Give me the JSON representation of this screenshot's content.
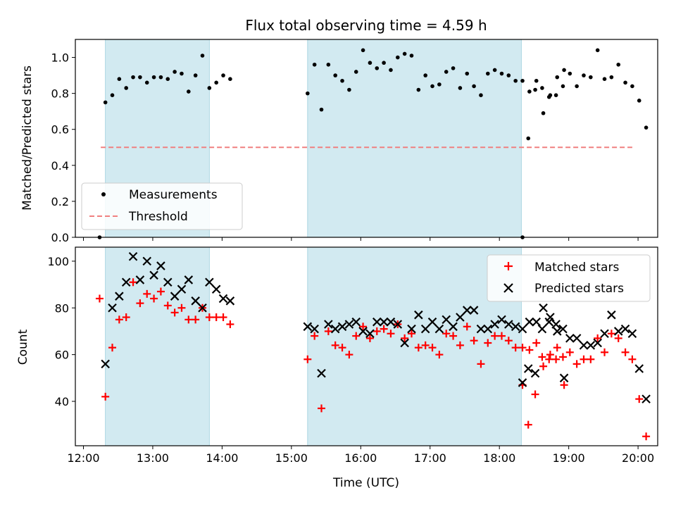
{
  "title": "Flux total observing time = 4.59 h",
  "colors": {
    "shade": "#add8e6",
    "measurement": "#000000",
    "threshold": "#f08080",
    "matched": "#ff0000",
    "predicted": "#000000"
  },
  "chart_data": [
    {
      "type": "scatter",
      "panel": "top",
      "ylabel": "Matched/Predicted stars",
      "ylim": [
        0,
        1.1
      ],
      "yticks": [
        "0.0",
        "0.2",
        "0.4",
        "0.6",
        "0.8",
        "1.0"
      ],
      "xlim": [
        "11:53",
        "20:17"
      ],
      "shaded_intervals": [
        [
          "12:19",
          "13:49"
        ],
        [
          "15:14",
          "18:19"
        ]
      ],
      "legend": {
        "placement": "lower left",
        "entries": [
          "Measurements",
          "Threshold"
        ]
      },
      "threshold": {
        "name": "Threshold",
        "value": 0.5,
        "x_range": [
          "12:15",
          "19:55"
        ]
      },
      "series": [
        {
          "name": "Measurements",
          "marker": "dot",
          "points": [
            [
              "12:14",
              0.0
            ],
            [
              "12:19",
              0.75
            ],
            [
              "12:25",
              0.79
            ],
            [
              "12:31",
              0.88
            ],
            [
              "12:37",
              0.83
            ],
            [
              "12:43",
              0.89
            ],
            [
              "12:49",
              0.89
            ],
            [
              "12:55",
              0.86
            ],
            [
              "13:01",
              0.89
            ],
            [
              "13:07",
              0.89
            ],
            [
              "13:13",
              0.88
            ],
            [
              "13:19",
              0.92
            ],
            [
              "13:25",
              0.91
            ],
            [
              "13:31",
              0.81
            ],
            [
              "13:37",
              0.9
            ],
            [
              "13:43",
              1.01
            ],
            [
              "13:49",
              0.83
            ],
            [
              "13:55",
              0.86
            ],
            [
              "14:01",
              0.9
            ],
            [
              "14:07",
              0.88
            ],
            [
              "15:14",
              0.8
            ],
            [
              "15:20",
              0.96
            ],
            [
              "15:26",
              0.71
            ],
            [
              "15:32",
              0.96
            ],
            [
              "15:38",
              0.9
            ],
            [
              "15:44",
              0.87
            ],
            [
              "15:50",
              0.82
            ],
            [
              "15:56",
              0.92
            ],
            [
              "16:02",
              1.04
            ],
            [
              "16:08",
              0.97
            ],
            [
              "16:14",
              0.94
            ],
            [
              "16:20",
              0.97
            ],
            [
              "16:26",
              0.93
            ],
            [
              "16:32",
              1.0
            ],
            [
              "16:38",
              1.02
            ],
            [
              "16:44",
              1.01
            ],
            [
              "16:50",
              0.82
            ],
            [
              "16:56",
              0.9
            ],
            [
              "17:02",
              0.84
            ],
            [
              "17:08",
              0.85
            ],
            [
              "17:14",
              0.92
            ],
            [
              "17:20",
              0.94
            ],
            [
              "17:26",
              0.83
            ],
            [
              "17:32",
              0.91
            ],
            [
              "17:38",
              0.84
            ],
            [
              "17:44",
              0.79
            ],
            [
              "17:50",
              0.91
            ],
            [
              "17:56",
              0.93
            ],
            [
              "18:02",
              0.91
            ],
            [
              "18:08",
              0.9
            ],
            [
              "18:14",
              0.87
            ],
            [
              "18:20",
              0.87
            ],
            [
              "18:26",
              0.81
            ],
            [
              "18:32",
              0.87
            ],
            [
              "18:38",
              0.69
            ],
            [
              "18:44",
              0.79
            ],
            [
              "18:50",
              0.89
            ],
            [
              "18:56",
              0.93
            ],
            [
              "18:20",
              0.0
            ],
            [
              "18:25",
              0.55
            ],
            [
              "18:31",
              0.82
            ],
            [
              "18:37",
              0.83
            ],
            [
              "18:43",
              0.78
            ],
            [
              "18:49",
              0.79
            ],
            [
              "18:55",
              0.84
            ],
            [
              "19:01",
              0.91
            ],
            [
              "19:07",
              0.84
            ],
            [
              "19:13",
              0.9
            ],
            [
              "19:19",
              0.89
            ],
            [
              "19:25",
              1.04
            ],
            [
              "19:31",
              0.88
            ],
            [
              "19:37",
              0.89
            ],
            [
              "19:43",
              0.96
            ],
            [
              "19:49",
              0.86
            ],
            [
              "19:55",
              0.84
            ],
            [
              "20:01",
              0.76
            ],
            [
              "20:07",
              0.61
            ]
          ]
        }
      ]
    },
    {
      "type": "scatter",
      "panel": "bottom",
      "xlabel": "Time (UTC)",
      "ylabel": "Count",
      "ylim": [
        21,
        106
      ],
      "yticks": [
        "40",
        "60",
        "80",
        "100"
      ],
      "xlim": [
        "11:53",
        "20:17"
      ],
      "xticks": [
        "12:00",
        "13:00",
        "14:00",
        "15:00",
        "16:00",
        "17:00",
        "18:00",
        "19:00",
        "20:00"
      ],
      "shaded_intervals": [
        [
          "12:19",
          "13:49"
        ],
        [
          "15:14",
          "18:19"
        ]
      ],
      "legend": {
        "placement": "top-right",
        "entries": [
          "Matched stars",
          "Predicted stars"
        ]
      },
      "series": [
        {
          "name": "Matched stars",
          "marker": "plus",
          "points": [
            [
              "12:14",
              84
            ],
            [
              "12:19",
              42
            ],
            [
              "12:25",
              63
            ],
            [
              "12:31",
              75
            ],
            [
              "12:37",
              76
            ],
            [
              "12:43",
              91
            ],
            [
              "12:49",
              82
            ],
            [
              "12:55",
              86
            ],
            [
              "13:01",
              84
            ],
            [
              "13:07",
              87
            ],
            [
              "13:13",
              81
            ],
            [
              "13:19",
              78
            ],
            [
              "13:25",
              80
            ],
            [
              "13:31",
              75
            ],
            [
              "13:37",
              75
            ],
            [
              "13:43",
              80
            ],
            [
              "13:49",
              76
            ],
            [
              "13:55",
              76
            ],
            [
              "14:01",
              76
            ],
            [
              "14:07",
              73
            ],
            [
              "15:14",
              58
            ],
            [
              "15:20",
              68
            ],
            [
              "15:26",
              37
            ],
            [
              "15:32",
              70
            ],
            [
              "15:38",
              64
            ],
            [
              "15:44",
              63
            ],
            [
              "15:50",
              60
            ],
            [
              "15:56",
              68
            ],
            [
              "16:02",
              72
            ],
            [
              "16:08",
              67
            ],
            [
              "16:14",
              70
            ],
            [
              "16:20",
              71
            ],
            [
              "16:26",
              69
            ],
            [
              "16:32",
              73
            ],
            [
              "16:38",
              67
            ],
            [
              "16:44",
              69
            ],
            [
              "16:50",
              63
            ],
            [
              "16:56",
              64
            ],
            [
              "17:02",
              63
            ],
            [
              "17:08",
              60
            ],
            [
              "17:14",
              69
            ],
            [
              "17:20",
              68
            ],
            [
              "17:26",
              64
            ],
            [
              "17:32",
              72
            ],
            [
              "17:38",
              66
            ],
            [
              "17:44",
              56
            ],
            [
              "17:50",
              65
            ],
            [
              "17:56",
              68
            ],
            [
              "18:02",
              68
            ],
            [
              "18:08",
              66
            ],
            [
              "18:14",
              63
            ],
            [
              "18:20",
              63
            ],
            [
              "18:26",
              62
            ],
            [
              "18:32",
              65
            ],
            [
              "18:38",
              55
            ],
            [
              "18:44",
              60
            ],
            [
              "18:50",
              63
            ],
            [
              "18:56",
              47
            ],
            [
              "18:20",
              47
            ],
            [
              "18:25",
              30
            ],
            [
              "18:31",
              43
            ],
            [
              "18:37",
              59
            ],
            [
              "18:43",
              58
            ],
            [
              "18:49",
              58
            ],
            [
              "18:55",
              59
            ],
            [
              "19:01",
              61
            ],
            [
              "19:07",
              56
            ],
            [
              "19:13",
              58
            ],
            [
              "19:19",
              58
            ],
            [
              "19:25",
              67
            ],
            [
              "19:31",
              61
            ],
            [
              "19:37",
              69
            ],
            [
              "19:43",
              67
            ],
            [
              "19:49",
              61
            ],
            [
              "19:55",
              58
            ],
            [
              "20:01",
              41
            ],
            [
              "20:07",
              25
            ]
          ]
        },
        {
          "name": "Predicted stars",
          "marker": "cross",
          "points": [
            [
              "12:19",
              56
            ],
            [
              "12:25",
              80
            ],
            [
              "12:31",
              85
            ],
            [
              "12:37",
              91
            ],
            [
              "12:43",
              102
            ],
            [
              "12:49",
              92
            ],
            [
              "12:55",
              100
            ],
            [
              "13:01",
              94
            ],
            [
              "13:07",
              98
            ],
            [
              "13:13",
              91
            ],
            [
              "13:19",
              85
            ],
            [
              "13:25",
              88
            ],
            [
              "13:31",
              92
            ],
            [
              "13:37",
              83
            ],
            [
              "13:43",
              80
            ],
            [
              "13:49",
              91
            ],
            [
              "13:55",
              88
            ],
            [
              "14:01",
              84
            ],
            [
              "14:07",
              83
            ],
            [
              "15:14",
              72
            ],
            [
              "15:20",
              71
            ],
            [
              "15:26",
              52
            ],
            [
              "15:32",
              73
            ],
            [
              "15:38",
              71
            ],
            [
              "15:44",
              72
            ],
            [
              "15:50",
              73
            ],
            [
              "15:56",
              74
            ],
            [
              "16:02",
              70
            ],
            [
              "16:08",
              69
            ],
            [
              "16:14",
              74
            ],
            [
              "16:20",
              74
            ],
            [
              "16:26",
              74
            ],
            [
              "16:32",
              73
            ],
            [
              "16:38",
              65
            ],
            [
              "16:44",
              71
            ],
            [
              "16:50",
              77
            ],
            [
              "16:56",
              71
            ],
            [
              "17:02",
              74
            ],
            [
              "17:08",
              71
            ],
            [
              "17:14",
              75
            ],
            [
              "17:20",
              72
            ],
            [
              "17:26",
              76
            ],
            [
              "17:32",
              79
            ],
            [
              "17:38",
              79
            ],
            [
              "17:44",
              71
            ],
            [
              "17:50",
              71
            ],
            [
              "17:56",
              73
            ],
            [
              "18:02",
              75
            ],
            [
              "18:08",
              73
            ],
            [
              "18:14",
              72
            ],
            [
              "18:20",
              71
            ],
            [
              "18:26",
              74
            ],
            [
              "18:32",
              74
            ],
            [
              "18:38",
              80
            ],
            [
              "18:44",
              76
            ],
            [
              "18:50",
              70
            ],
            [
              "18:56",
              50
            ],
            [
              "18:20",
              48
            ],
            [
              "18:25",
              54
            ],
            [
              "18:31",
              52
            ],
            [
              "18:37",
              71
            ],
            [
              "18:43",
              74
            ],
            [
              "18:49",
              73
            ],
            [
              "18:55",
              71
            ],
            [
              "19:01",
              67
            ],
            [
              "19:07",
              67
            ],
            [
              "19:13",
              64
            ],
            [
              "19:19",
              64
            ],
            [
              "19:25",
              65
            ],
            [
              "19:31",
              69
            ],
            [
              "19:37",
              77
            ],
            [
              "19:43",
              70
            ],
            [
              "19:49",
              71
            ],
            [
              "19:55",
              69
            ],
            [
              "20:01",
              54
            ],
            [
              "20:07",
              41
            ]
          ]
        }
      ]
    }
  ]
}
